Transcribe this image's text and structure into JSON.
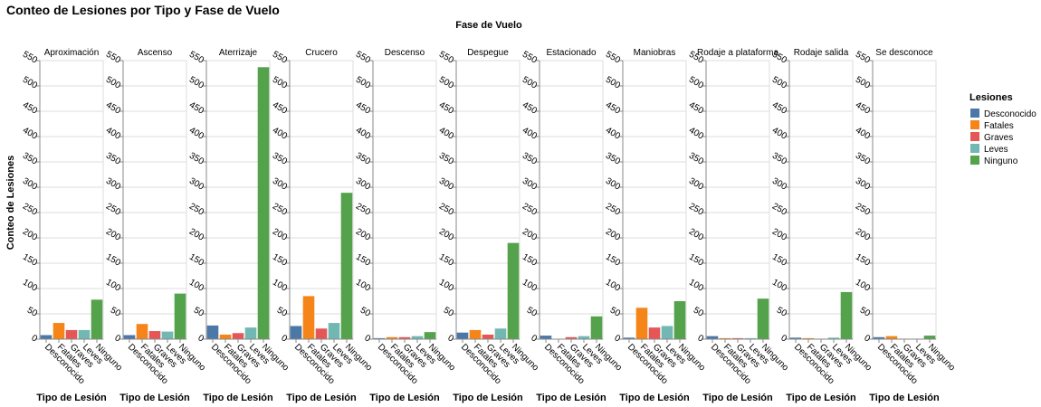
{
  "chart_data": {
    "type": "bar",
    "title": "Conteo de Lesiones por Tipo y Fase de Vuelo",
    "facet_title": "Fase de Vuelo",
    "xlabel": "Tipo de Lesión",
    "ylabel": "Conteo de Lesiones",
    "ylim": [
      0,
      550
    ],
    "yticks": [
      0,
      50,
      100,
      150,
      200,
      250,
      300,
      350,
      400,
      450,
      500,
      550
    ],
    "grid": true,
    "legend": {
      "title": "Lesiones",
      "placement": "right",
      "items": [
        "Desconocido",
        "Fatales",
        "Graves",
        "Leves",
        "Ninguno"
      ]
    },
    "categories": [
      "Desconocido",
      "Fatales",
      "Graves",
      "Leves",
      "Ninguno"
    ],
    "colors": {
      "Desconocido": "#4c78a8",
      "Fatales": "#f58518",
      "Graves": "#e45756",
      "Leves": "#72b7b2",
      "Ninguno": "#54a24b"
    },
    "facets": [
      {
        "name": "Aproximación",
        "values": [
          8,
          32,
          18,
          18,
          78
        ]
      },
      {
        "name": "Ascenso",
        "values": [
          8,
          30,
          16,
          15,
          90
        ]
      },
      {
        "name": "Aterrizaje",
        "values": [
          27,
          9,
          12,
          23,
          537
        ]
      },
      {
        "name": "Crucero",
        "values": [
          26,
          85,
          21,
          32,
          289
        ]
      },
      {
        "name": "Descenso",
        "values": [
          2,
          4,
          4,
          6,
          14
        ]
      },
      {
        "name": "Despegue",
        "values": [
          13,
          18,
          9,
          21,
          190
        ]
      },
      {
        "name": "Estacionado",
        "values": [
          7,
          0,
          4,
          6,
          45
        ]
      },
      {
        "name": "Maniobras",
        "values": [
          3,
          62,
          23,
          26,
          75
        ]
      },
      {
        "name": "Rodaje a plataforma",
        "values": [
          6,
          2,
          2,
          2,
          80
        ]
      },
      {
        "name": "Rodaje salida",
        "values": [
          3,
          2,
          1,
          3,
          93
        ]
      },
      {
        "name": "Se desconoce",
        "values": [
          4,
          6,
          1,
          1,
          7
        ]
      }
    ]
  }
}
